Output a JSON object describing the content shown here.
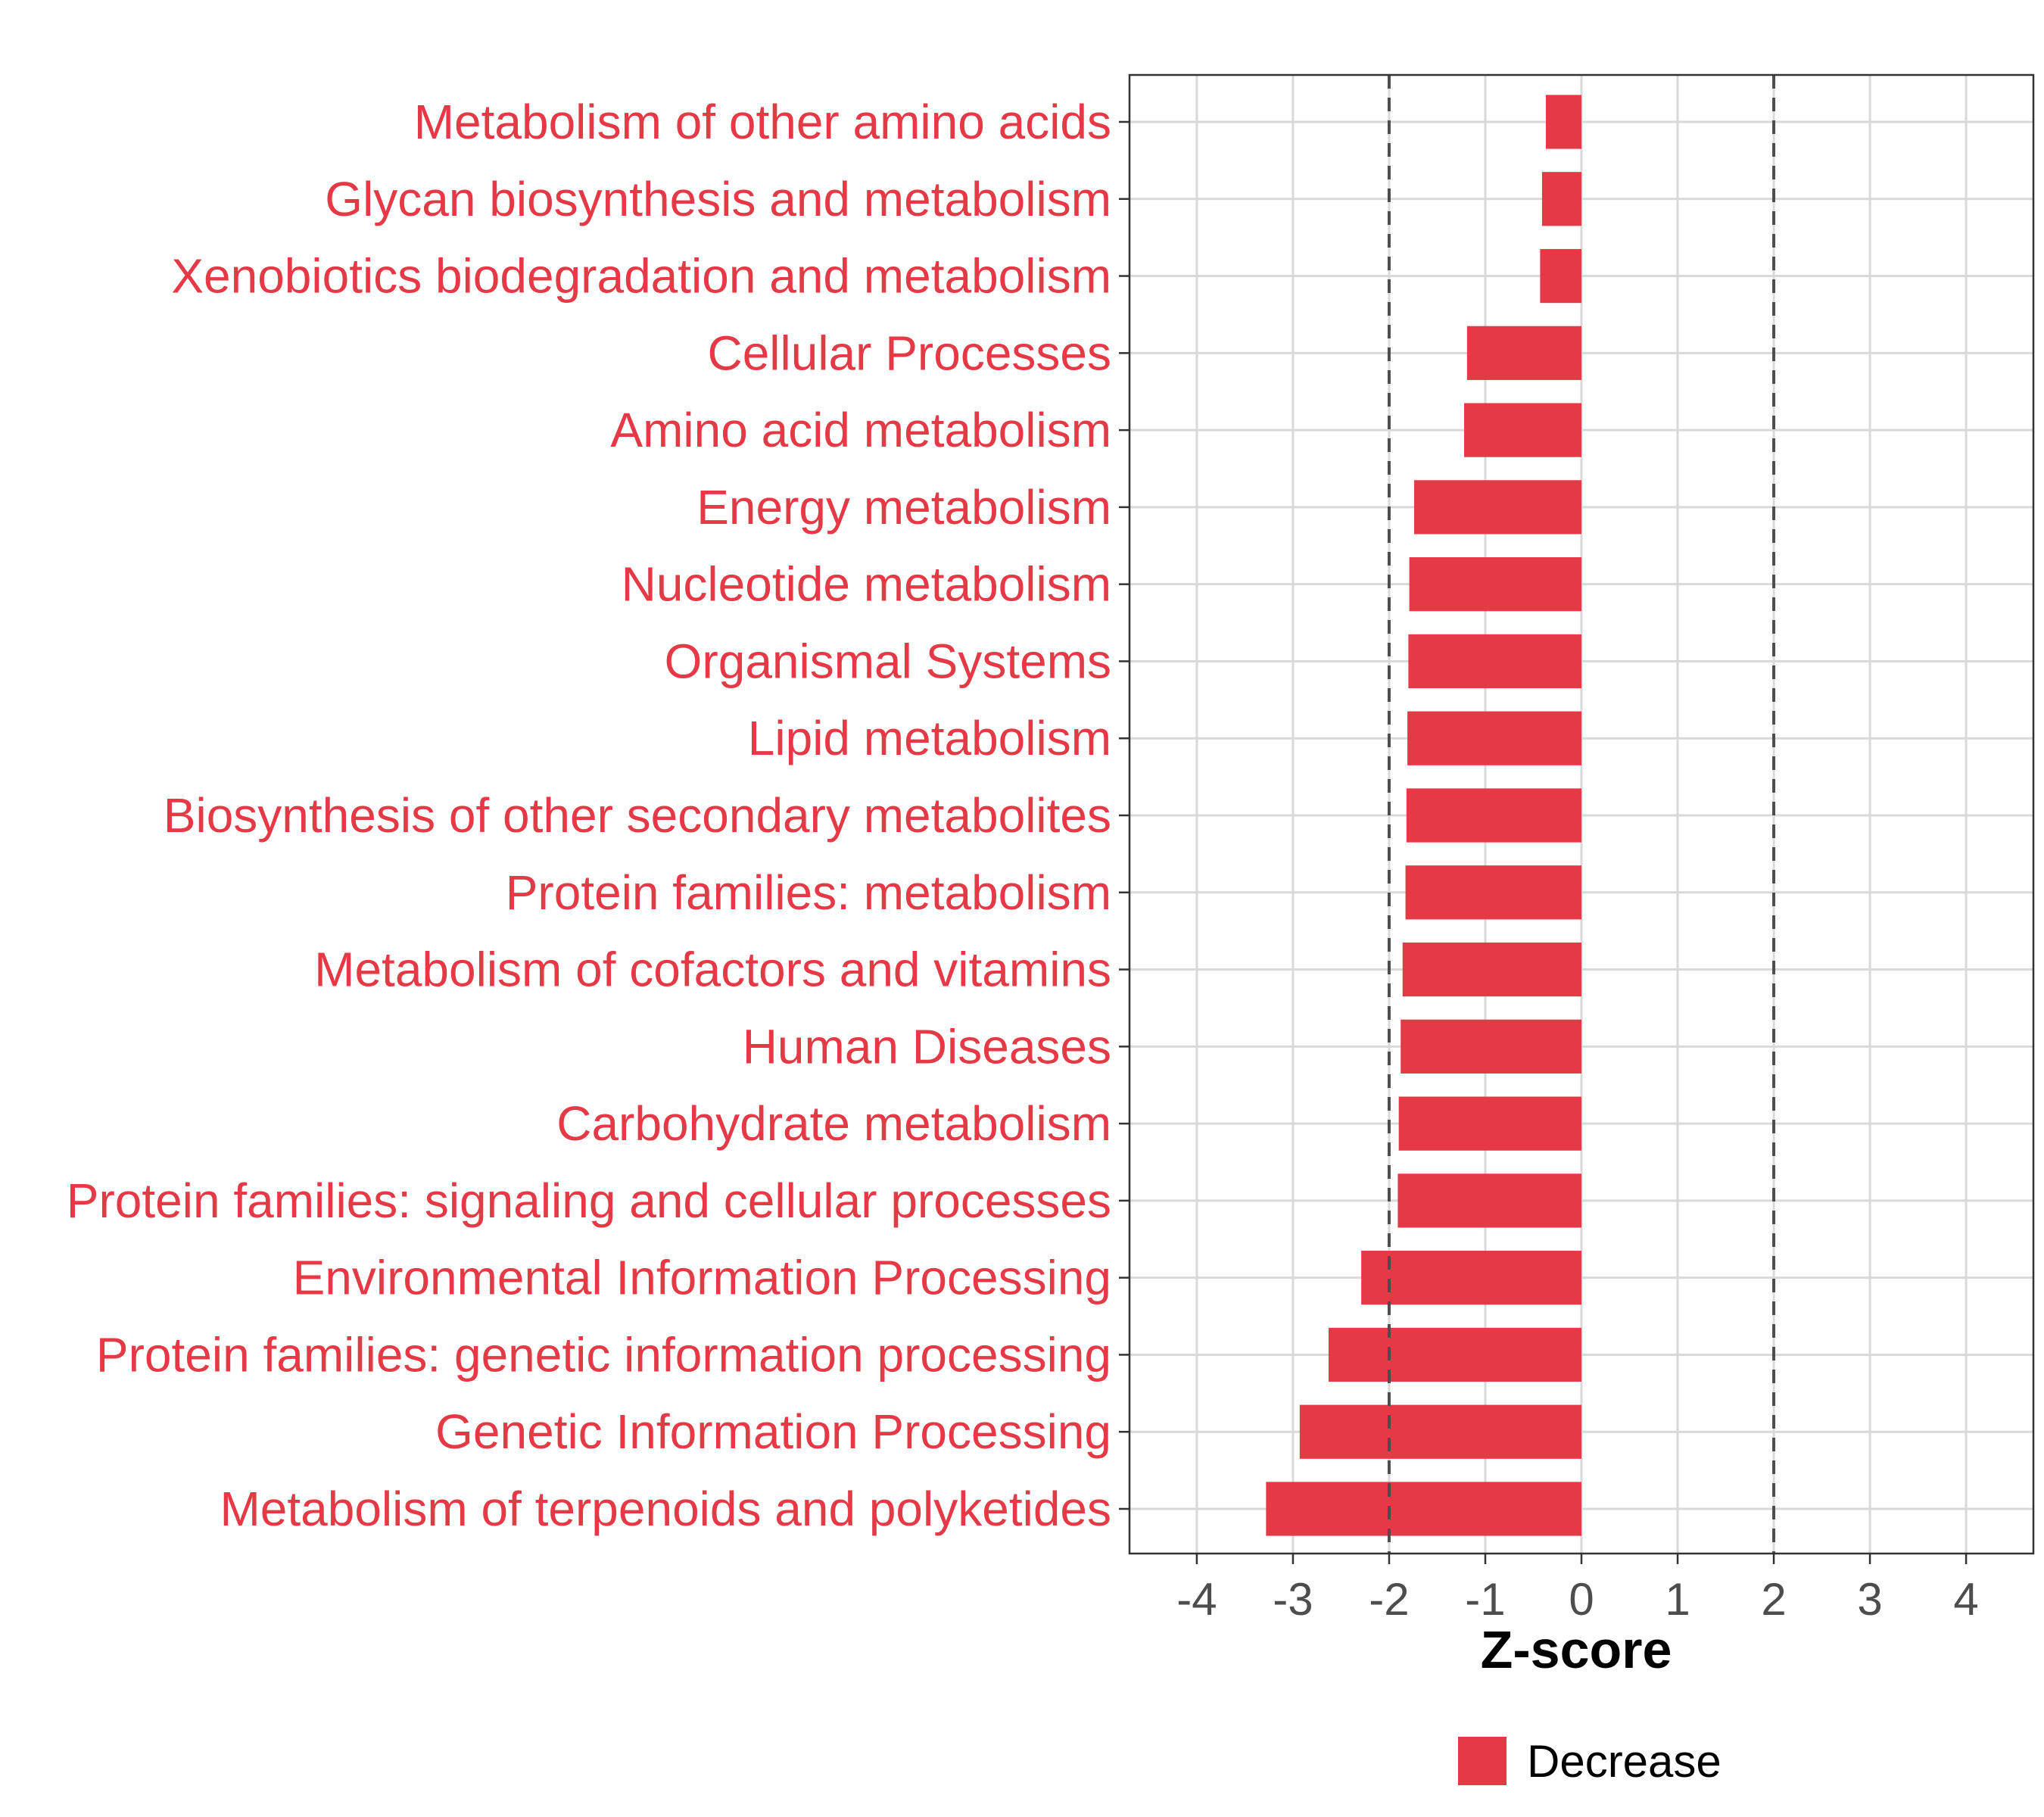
{
  "chart_data": {
    "type": "bar",
    "orientation": "horizontal",
    "categories": [
      "Metabolism of other amino acids",
      "Glycan biosynthesis and metabolism",
      "Xenobiotics biodegradation and metabolism",
      "Cellular Processes",
      "Amino acid metabolism",
      "Energy metabolism",
      "Nucleotide metabolism",
      "Organismal Systems",
      "Lipid metabolism",
      "Biosynthesis of other secondary metabolites",
      "Protein families: metabolism",
      "Metabolism of cofactors and vitamins",
      "Human Diseases",
      "Carbohydrate metabolism",
      "Protein families: signaling and cellular processes",
      "Environmental Information Processing",
      "Protein families: genetic information processing",
      "Genetic Information Processing",
      "Metabolism of terpenoids and polyketides"
    ],
    "values": [
      -0.37,
      -0.41,
      -0.43,
      -1.19,
      -1.22,
      -1.74,
      -1.79,
      -1.8,
      -1.81,
      -1.82,
      -1.83,
      -1.86,
      -1.88,
      -1.9,
      -1.91,
      -2.29,
      -2.63,
      -2.93,
      -3.28
    ],
    "xlabel": "Z-score",
    "ylabel": "",
    "xlim": [
      -4.7,
      4.7
    ],
    "xticks": [
      "-4",
      "-3",
      "-2",
      "-1",
      "0",
      "1",
      "2",
      "3",
      "4"
    ],
    "reference_lines": [
      -2,
      2
    ],
    "legend": {
      "label": "Decrease",
      "position": "bottom"
    },
    "colors": {
      "bar": "#e63946",
      "label": "#e63946",
      "grid": "#d9d9d9",
      "ref_line": "#4d4d4d"
    }
  }
}
